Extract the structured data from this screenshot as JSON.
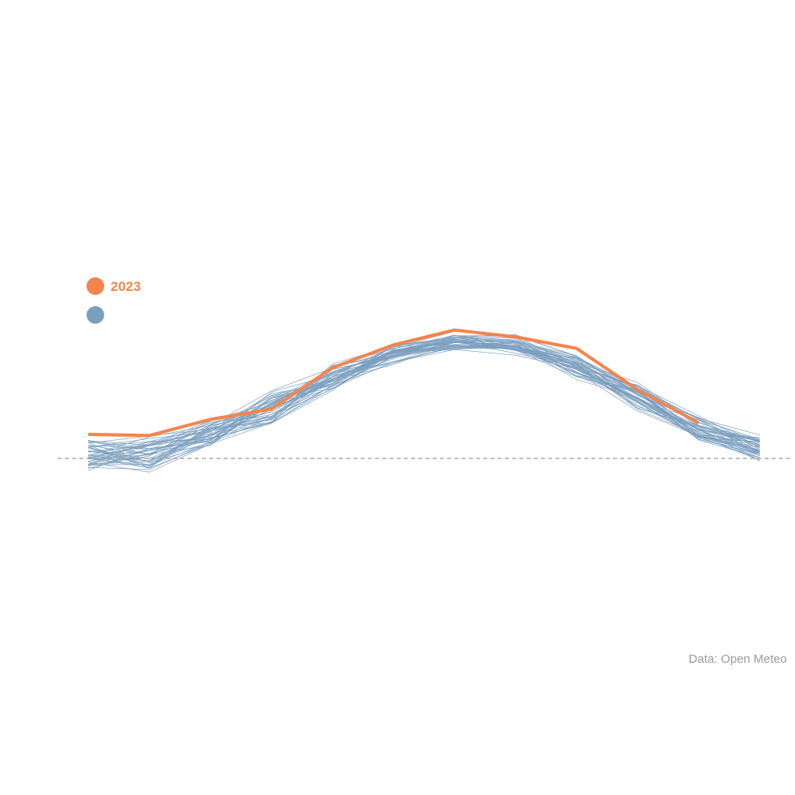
{
  "chart_data": {
    "type": "line",
    "x": [
      1,
      2,
      3,
      4,
      5,
      6,
      7,
      8,
      9,
      10,
      11,
      12
    ],
    "reference_line": {
      "y": 0,
      "style": "dashed",
      "color": "#999999"
    },
    "highlight_series": {
      "name": "2023",
      "color": "#f4844c",
      "values": [
        2.1,
        2.0,
        3.4,
        4.3,
        7.9,
        9.9,
        11.2,
        10.6,
        9.6,
        6.0,
        3.1,
        null
      ]
    },
    "background_series": {
      "name": "",
      "color": "#7a9fbe",
      "count": 45,
      "base": [
        0.4,
        0.2,
        2.1,
        4.3,
        7.0,
        9.1,
        10.2,
        9.9,
        8.0,
        5.4,
        2.6,
        0.9
      ],
      "spread": [
        2.3,
        3.0,
        2.1,
        2.6,
        2.0,
        1.4,
        1.0,
        1.3,
        2.0,
        1.9,
        1.8,
        1.8
      ]
    },
    "legend": [
      {
        "label": "2023",
        "color": "#f4844c"
      },
      {
        "label": "",
        "color": "#7a9fbe"
      }
    ],
    "xlabel": "",
    "ylabel": "",
    "grid": false
  },
  "source_text": "Data: Open Meteo"
}
